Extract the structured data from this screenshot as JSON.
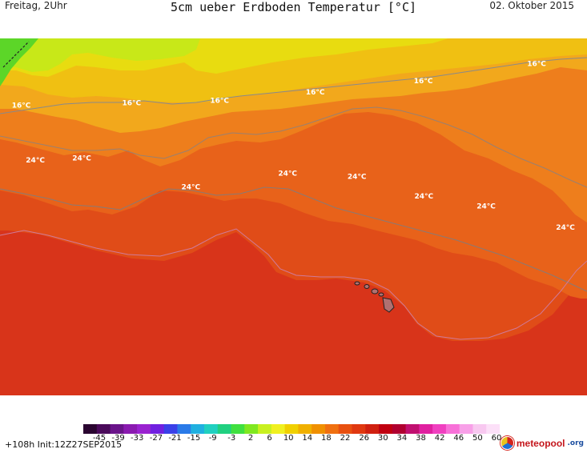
{
  "header": {
    "left": "Freitag, 2Uhr",
    "title": "5cm ueber Erdboden Temperatur [°C]",
    "right": "02. Oktober 2015"
  },
  "map": {
    "contour_labels": [
      {
        "text": "16°C",
        "lx": 0.02,
        "ly": 0.194
      },
      {
        "text": "16°C",
        "lx": 0.208,
        "ly": 0.187
      },
      {
        "text": "16°C",
        "lx": 0.358,
        "ly": 0.181
      },
      {
        "text": "16°C",
        "lx": 0.521,
        "ly": 0.157
      },
      {
        "text": "16°C",
        "lx": 0.705,
        "ly": 0.126
      },
      {
        "text": "16°C",
        "lx": 0.898,
        "ly": 0.077
      },
      {
        "text": "24°C",
        "lx": 0.044,
        "ly": 0.347
      },
      {
        "text": "24°C",
        "lx": 0.123,
        "ly": 0.342
      },
      {
        "text": "24°C",
        "lx": 0.309,
        "ly": 0.423
      },
      {
        "text": "24°C",
        "lx": 0.474,
        "ly": 0.384
      },
      {
        "text": "24°C",
        "lx": 0.592,
        "ly": 0.393
      },
      {
        "text": "24°C",
        "lx": 0.706,
        "ly": 0.448
      },
      {
        "text": "24°C",
        "lx": 0.812,
        "ly": 0.477
      },
      {
        "text": "24°C",
        "lx": 0.947,
        "ly": 0.536
      }
    ]
  },
  "legend": {
    "ticks": [
      "-45",
      "-39",
      "-33",
      "-27",
      "-21",
      "-15",
      "-9",
      "-3",
      "2",
      "6",
      "10",
      "14",
      "18",
      "22",
      "26",
      "30",
      "34",
      "38",
      "42",
      "46",
      "50",
      "60"
    ],
    "colors": [
      "#2a0530",
      "#4a0a5a",
      "#6a148a",
      "#8a1ab0",
      "#9a22d0",
      "#7020e0",
      "#3a40e8",
      "#2a7ae8",
      "#20b0e0",
      "#20d0c0",
      "#20d080",
      "#40e040",
      "#80e820",
      "#c8f020",
      "#f0f020",
      "#f0d000",
      "#f0b000",
      "#f09000",
      "#f07010",
      "#e85010",
      "#e03810",
      "#d02010",
      "#c00010",
      "#b00030",
      "#c01070",
      "#e020a0",
      "#f040c0",
      "#f870d8",
      "#f8a0e8",
      "#f8c8f0",
      "#fce0f8"
    ]
  },
  "footer": {
    "left": "+108h Init:12Z27SEP2015",
    "brand": "meteopool",
    "brand_tld": ".org"
  }
}
